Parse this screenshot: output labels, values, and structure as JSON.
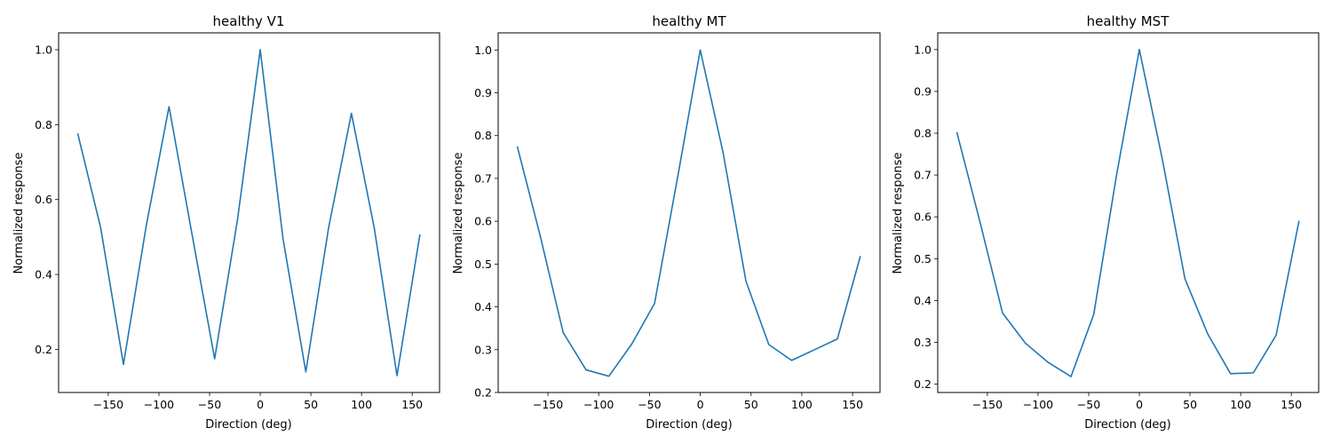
{
  "chart_data": [
    {
      "type": "line",
      "title": "healthy V1",
      "xlabel": "Direction (deg)",
      "ylabel": "Normalized response",
      "xlim": [
        -199,
        177
      ],
      "ylim": [
        0.085,
        1.045
      ],
      "xticks": [
        -150,
        -100,
        -50,
        0,
        50,
        100,
        150
      ],
      "xtick_labels": [
        "−150",
        "−100",
        "−50",
        "0",
        "50",
        "100",
        "150"
      ],
      "yticks": [
        0.2,
        0.4,
        0.6,
        0.8,
        1.0
      ],
      "ytick_labels": [
        "0.2",
        "0.4",
        "0.6",
        "0.8",
        "1.0"
      ],
      "grid": false,
      "series": [
        {
          "color": "#1f77b4",
          "x": [
            -180,
            -157.5,
            -135,
            -112.5,
            -90,
            -67.5,
            -45,
            -22.5,
            0,
            22.5,
            45,
            67.5,
            90,
            112.5,
            135,
            157.5
          ],
          "y": [
            0.775,
            0.525,
            0.16,
            0.53,
            0.848,
            0.51,
            0.175,
            0.545,
            1.0,
            0.495,
            0.14,
            0.525,
            0.83,
            0.525,
            0.13,
            0.505
          ]
        }
      ]
    },
    {
      "type": "line",
      "title": "healthy MT",
      "xlabel": "Direction (deg)",
      "ylabel": "Normalized response",
      "xlim": [
        -199,
        177
      ],
      "ylim": [
        0.2,
        1.04
      ],
      "xticks": [
        -150,
        -100,
        -50,
        0,
        50,
        100,
        150
      ],
      "xtick_labels": [
        "−150",
        "−100",
        "−50",
        "0",
        "50",
        "100",
        "150"
      ],
      "yticks": [
        0.2,
        0.3,
        0.4,
        0.5,
        0.6,
        0.7,
        0.8,
        0.9,
        1.0
      ],
      "ytick_labels": [
        "0.2",
        "0.3",
        "0.4",
        "0.5",
        "0.6",
        "0.7",
        "0.8",
        "0.9",
        "1.0"
      ],
      "grid": false,
      "series": [
        {
          "color": "#1f77b4",
          "x": [
            -180,
            -157.5,
            -135,
            -112.5,
            -90,
            -67.5,
            -45,
            -22.5,
            0,
            22.5,
            45,
            67.5,
            90,
            112.5,
            135,
            157.5
          ],
          "y": [
            0.773,
            0.565,
            0.34,
            0.253,
            0.238,
            0.313,
            0.408,
            0.7,
            1.0,
            0.76,
            0.46,
            0.312,
            0.275,
            0.3,
            0.325,
            0.517
          ]
        }
      ]
    },
    {
      "type": "line",
      "title": "healthy MST",
      "xlabel": "Direction (deg)",
      "ylabel": "Normalized response",
      "xlim": [
        -199,
        177
      ],
      "ylim": [
        0.18,
        1.04
      ],
      "xticks": [
        -150,
        -100,
        -50,
        0,
        50,
        100,
        150
      ],
      "xtick_labels": [
        "−150",
        "−100",
        "−50",
        "0",
        "50",
        "100",
        "150"
      ],
      "yticks": [
        0.2,
        0.3,
        0.4,
        0.5,
        0.6,
        0.7,
        0.8,
        0.9,
        1.0
      ],
      "ytick_labels": [
        "0.2",
        "0.3",
        "0.4",
        "0.5",
        "0.6",
        "0.7",
        "0.8",
        "0.9",
        "1.0"
      ],
      "grid": false,
      "series": [
        {
          "color": "#1f77b4",
          "x": [
            -180,
            -157.5,
            -135,
            -112.5,
            -90,
            -67.5,
            -45,
            -22.5,
            0,
            22.5,
            45,
            67.5,
            90,
            112.5,
            135,
            157.5
          ],
          "y": [
            0.801,
            0.59,
            0.37,
            0.298,
            0.252,
            0.218,
            0.367,
            0.7,
            1.0,
            0.74,
            0.452,
            0.32,
            0.225,
            0.227,
            0.317,
            0.589
          ]
        }
      ]
    }
  ]
}
